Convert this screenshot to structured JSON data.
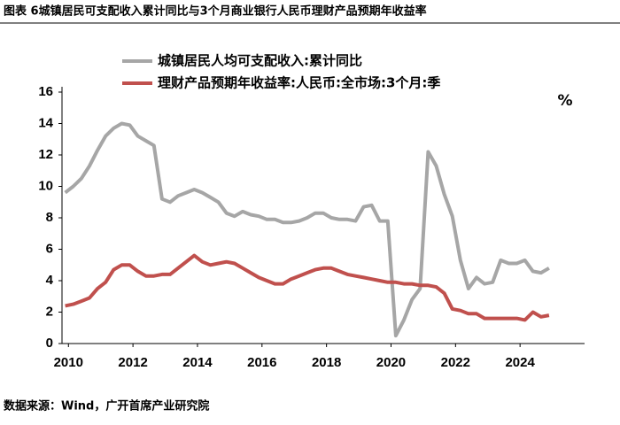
{
  "chart_data": {
    "type": "line",
    "title": "图表 6城镇居民可支配收入累计同比与3个月商业银行人民币理财产品预期年收益率",
    "source": "数据来源：Wind，广开首席产业研究院",
    "unit_label": "%",
    "x": [
      2009.9,
      2010.15,
      2010.4,
      2010.65,
      2010.9,
      2011.15,
      2011.4,
      2011.65,
      2011.9,
      2012.15,
      2012.4,
      2012.65,
      2012.9,
      2013.15,
      2013.4,
      2013.65,
      2013.9,
      2014.15,
      2014.4,
      2014.65,
      2014.9,
      2015.15,
      2015.4,
      2015.65,
      2015.9,
      2016.15,
      2016.4,
      2016.65,
      2016.9,
      2017.15,
      2017.4,
      2017.65,
      2017.9,
      2018.15,
      2018.4,
      2018.65,
      2018.9,
      2019.15,
      2019.4,
      2019.65,
      2019.9,
      2020.15,
      2020.4,
      2020.65,
      2020.9,
      2021.15,
      2021.4,
      2021.65,
      2021.9,
      2022.15,
      2022.4,
      2022.65,
      2022.9,
      2023.15,
      2023.4,
      2023.65,
      2023.9,
      2024.15,
      2024.4,
      2024.65,
      2024.9
    ],
    "series": [
      {
        "name": "城镇居民人均可支配收入:累计同比",
        "color": "#a6a6a6",
        "values": [
          9.6,
          10.0,
          10.5,
          11.3,
          12.3,
          13.2,
          13.7,
          14.0,
          13.9,
          13.2,
          12.9,
          12.6,
          9.2,
          9.0,
          9.4,
          9.6,
          9.8,
          9.6,
          9.3,
          9.0,
          8.3,
          8.1,
          8.4,
          8.2,
          8.1,
          7.9,
          7.9,
          7.7,
          7.7,
          7.8,
          8.0,
          8.3,
          8.3,
          8.0,
          7.9,
          7.9,
          7.8,
          8.7,
          8.8,
          7.8,
          7.8,
          0.5,
          1.5,
          2.8,
          3.5,
          12.2,
          11.3,
          9.5,
          8.1,
          5.3,
          3.5,
          4.2,
          3.8,
          3.9,
          5.3,
          5.1,
          5.1,
          5.3,
          4.6,
          4.5,
          4.8
        ]
      },
      {
        "name": "理财产品预期年收益率:人民币:全市场:3个月:季",
        "color": "#c0504d",
        "values": [
          2.4,
          2.5,
          2.7,
          2.9,
          3.5,
          3.9,
          4.7,
          5.0,
          5.0,
          4.6,
          4.3,
          4.3,
          4.4,
          4.4,
          4.8,
          5.2,
          5.6,
          5.2,
          5.0,
          5.1,
          5.2,
          5.1,
          4.8,
          4.5,
          4.2,
          4.0,
          3.8,
          3.8,
          4.1,
          4.3,
          4.5,
          4.7,
          4.8,
          4.8,
          4.6,
          4.4,
          4.3,
          4.2,
          4.1,
          4.0,
          3.9,
          3.9,
          3.8,
          3.8,
          3.7,
          3.7,
          3.6,
          3.2,
          2.2,
          2.1,
          1.9,
          1.9,
          1.6,
          1.6,
          1.6,
          1.6,
          1.6,
          1.5,
          2.0,
          1.7,
          1.8
        ]
      }
    ],
    "xlim": [
      2009.8,
      2026
    ],
    "xticks": [
      2010,
      2012,
      2014,
      2016,
      2018,
      2020,
      2022,
      2024
    ],
    "ylim": [
      0,
      16
    ],
    "yticks": [
      0,
      2,
      4,
      6,
      8,
      10,
      12,
      14,
      16
    ],
    "grid": false
  }
}
